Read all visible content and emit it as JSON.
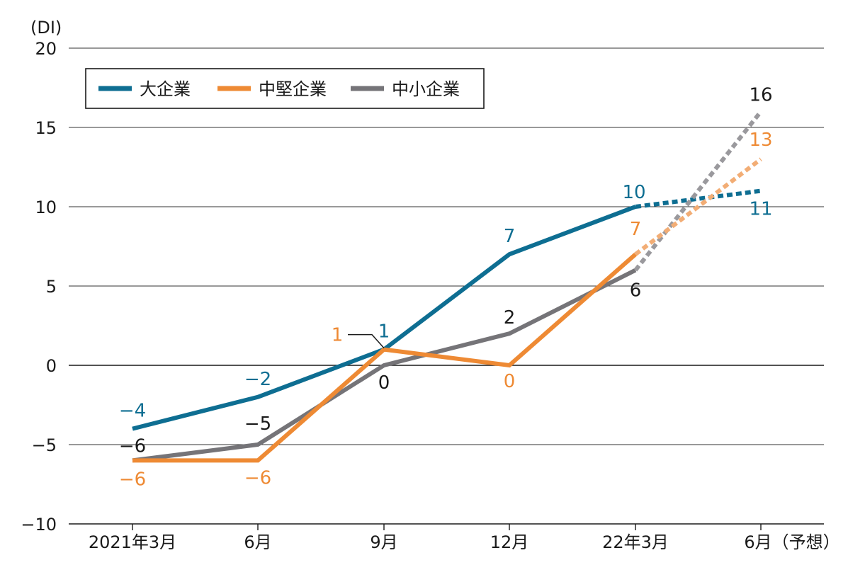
{
  "chart_data": {
    "type": "line",
    "ylabel": "(DI)",
    "ylim": [
      -10,
      20
    ],
    "yticks": [
      20,
      15,
      10,
      5,
      0,
      -5,
      -10
    ],
    "ytick_labels": [
      "20",
      "15",
      "10",
      "5",
      "0",
      "−5",
      "−10"
    ],
    "categories": [
      "2021年3月",
      "6月",
      "9月",
      "12月",
      "22年3月",
      "6月（予想）"
    ],
    "grid": true,
    "legend_position": "top-left",
    "series": [
      {
        "name": "大企業",
        "color": "#0e6e92",
        "values": [
          -4,
          -2,
          1,
          7,
          10,
          11
        ],
        "labels": [
          "−4",
          "−2",
          "1",
          "7",
          "10",
          "11"
        ],
        "forecast_from_index": 4
      },
      {
        "name": "中堅企業",
        "color": "#ee8a34",
        "forecast_color": "#f2ad75",
        "values": [
          -6,
          -6,
          1,
          0,
          7,
          13
        ],
        "labels": [
          "−6",
          "−6",
          "1",
          "0",
          "7",
          "13"
        ],
        "forecast_from_index": 4
      },
      {
        "name": "中小企業",
        "color": "#757478",
        "forecast_color": "#9a999d",
        "values": [
          -6,
          -5,
          0,
          2,
          6,
          16
        ],
        "labels": [
          "−6",
          "−5",
          "0",
          "2",
          "6",
          "16"
        ],
        "forecast_from_index": 4
      }
    ]
  }
}
